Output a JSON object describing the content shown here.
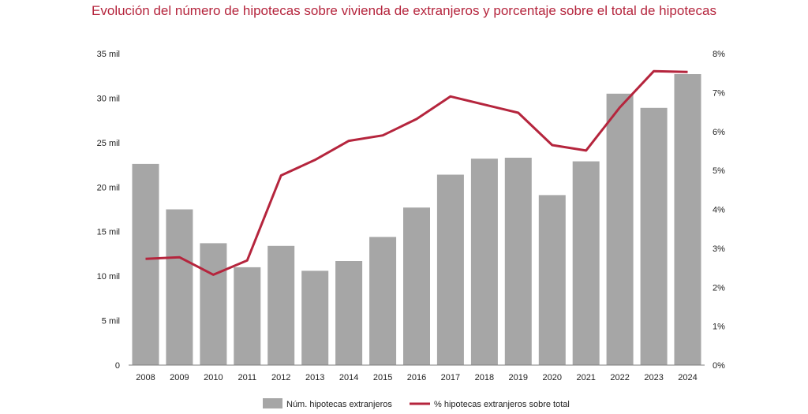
{
  "chart_data": {
    "type": "bar",
    "title": "Evolución del número de hipotecas sobre vivienda de extranjeros y porcentaje sobre el total de hipotecas",
    "xlabel": "",
    "ylabel": "",
    "categories": [
      "2008",
      "2009",
      "2010",
      "2011",
      "2012",
      "2013",
      "2014",
      "2015",
      "2016",
      "2017",
      "2018",
      "2019",
      "2020",
      "2021",
      "2022",
      "2023",
      "2024"
    ],
    "series": [
      {
        "name": "Núm. hipotecas extranjeros",
        "type": "bar",
        "axis": "left",
        "color": "#a6a6a6",
        "values": [
          22600,
          17500,
          13700,
          11000,
          13400,
          10600,
          11700,
          14400,
          17700,
          21400,
          23200,
          23300,
          19100,
          22900,
          30500,
          28900,
          32700
        ]
      },
      {
        "name": "% hipotecas extranjeros sobre total",
        "type": "line",
        "axis": "right",
        "color": "#b5253d",
        "values": [
          2.73,
          2.77,
          2.32,
          2.69,
          4.87,
          5.27,
          5.76,
          5.9,
          6.32,
          6.9,
          6.69,
          6.48,
          5.65,
          5.51,
          6.62,
          7.55,
          7.53
        ]
      }
    ],
    "ylim_left": [
      0,
      35000
    ],
    "ylim_right": [
      0,
      8
    ],
    "left_ticks": [
      {
        "value": 0,
        "label": "0"
      },
      {
        "value": 5000,
        "label": "5 mil"
      },
      {
        "value": 10000,
        "label": "10 mil"
      },
      {
        "value": 15000,
        "label": "15 mil"
      },
      {
        "value": 20000,
        "label": "20 mil"
      },
      {
        "value": 25000,
        "label": "25 mil"
      },
      {
        "value": 30000,
        "label": "30 mil"
      },
      {
        "value": 35000,
        "label": "35 mil"
      }
    ],
    "right_ticks": [
      {
        "value": 0,
        "label": "0%"
      },
      {
        "value": 1,
        "label": "1%"
      },
      {
        "value": 2,
        "label": "2%"
      },
      {
        "value": 3,
        "label": "3%"
      },
      {
        "value": 4,
        "label": "4%"
      },
      {
        "value": 5,
        "label": "5%"
      },
      {
        "value": 6,
        "label": "6%"
      },
      {
        "value": 7,
        "label": "7%"
      },
      {
        "value": 8,
        "label": "8%"
      }
    ],
    "grid": false,
    "legend_position": "bottom",
    "title_color": "#b5253d"
  }
}
